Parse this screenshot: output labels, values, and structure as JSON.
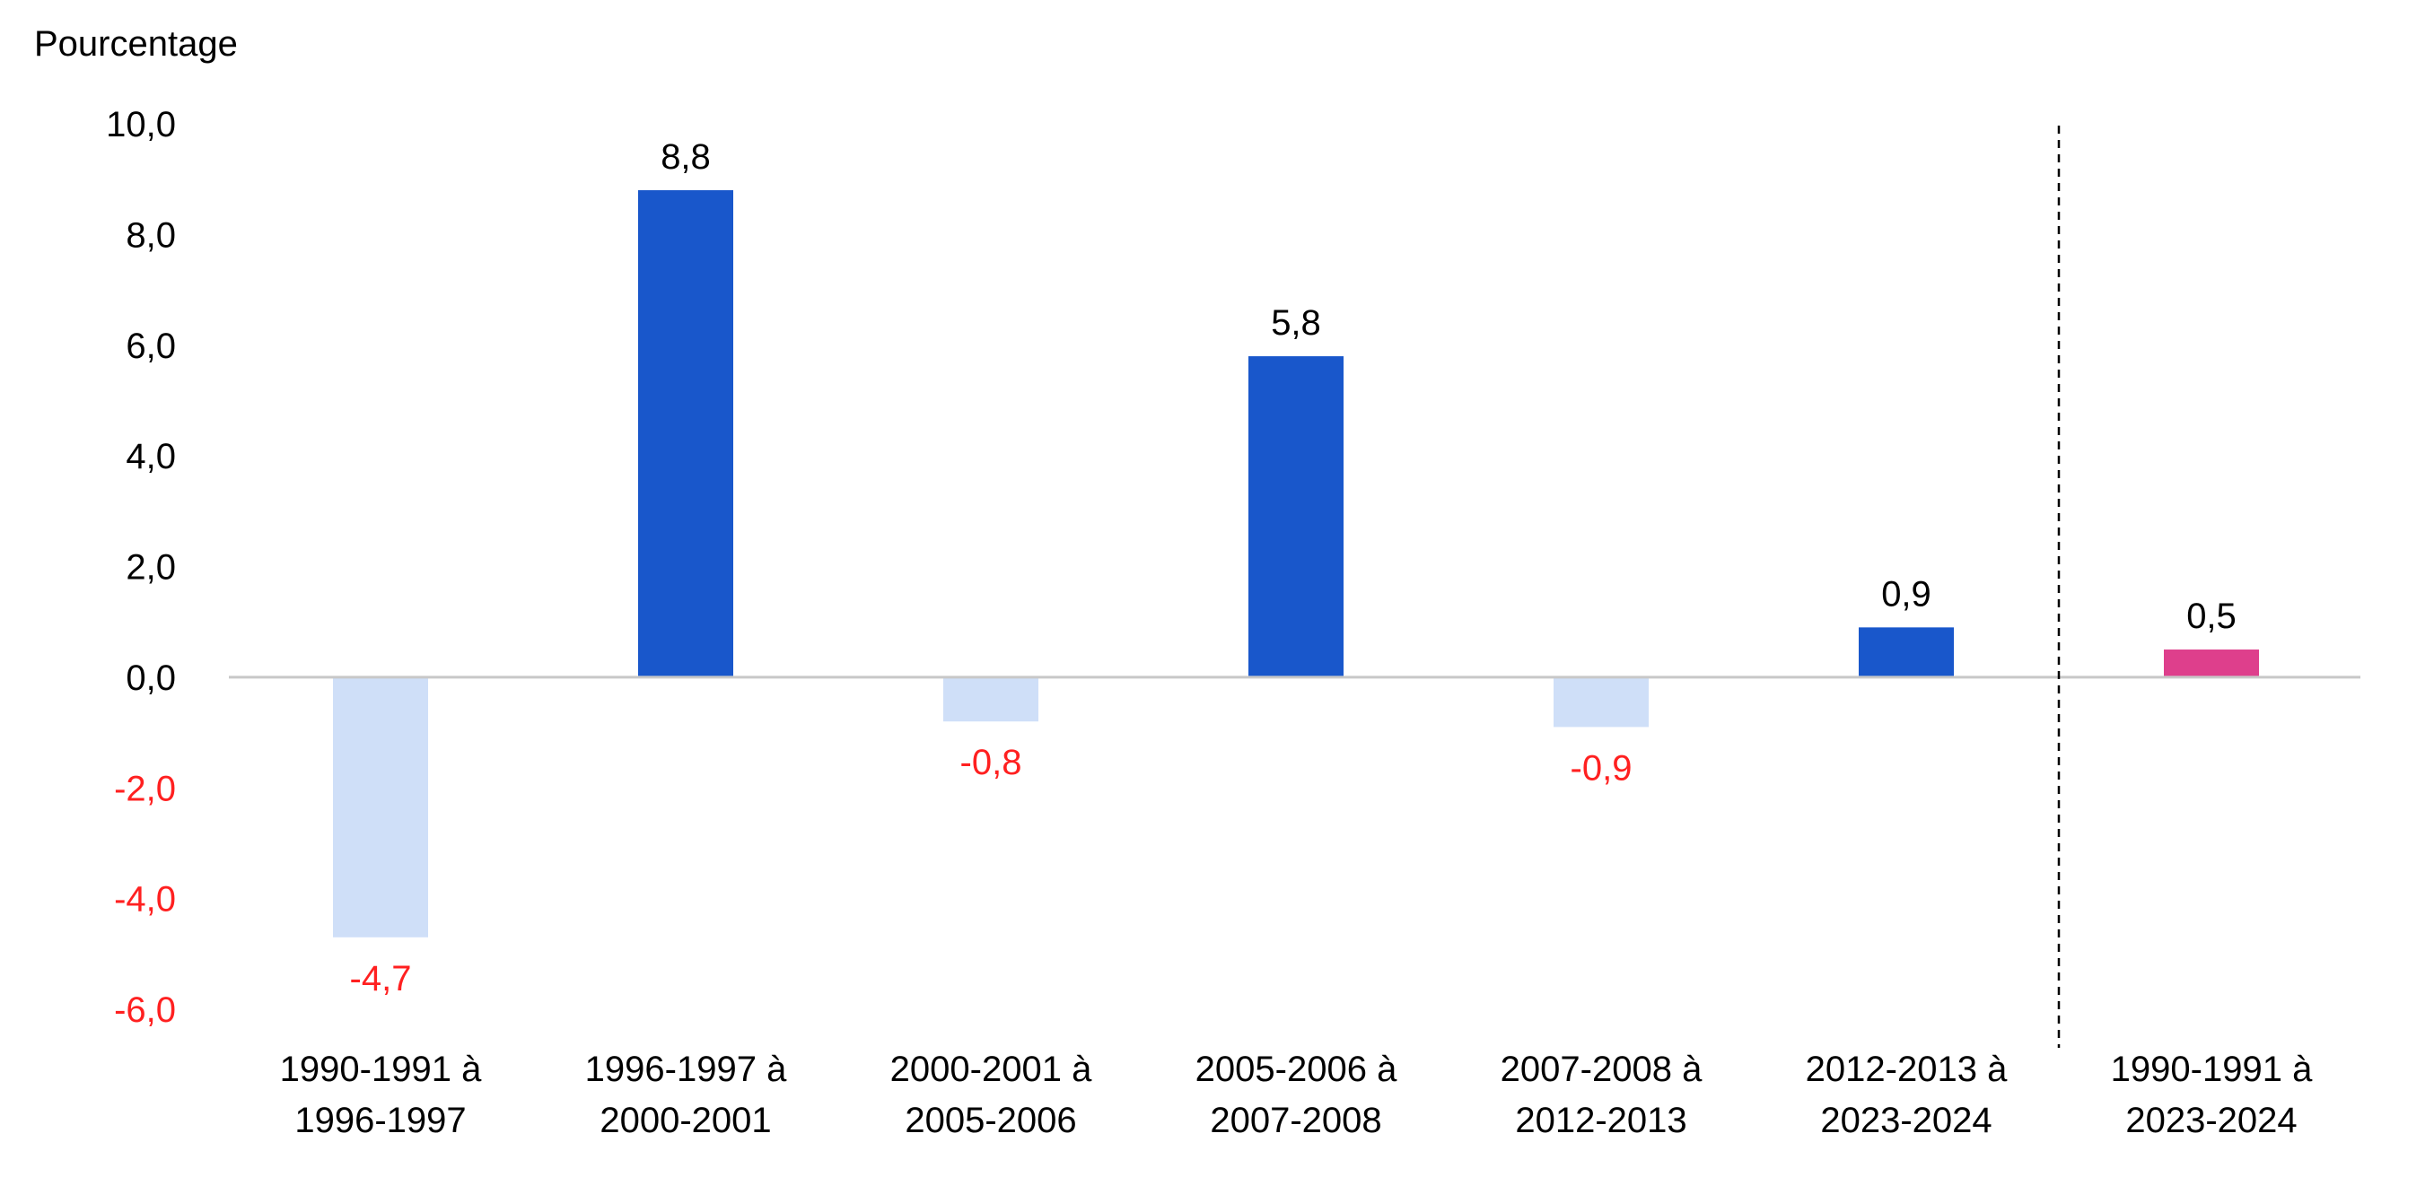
{
  "chart_data": {
    "type": "bar",
    "ylabel": "Pourcentage",
    "ylim": [
      -6,
      10
    ],
    "y_ticks": [
      "10,0",
      "8,0",
      "6,0",
      "4,0",
      "2,0",
      "0,0",
      "-2,0",
      "-4,0",
      "-6,0"
    ],
    "y_tick_values": [
      10,
      8,
      6,
      4,
      2,
      0,
      -2,
      -4,
      -6
    ],
    "categories": [
      [
        "1990-1991 à",
        "1996-1997"
      ],
      [
        "1996-1997 à",
        "2000-2001"
      ],
      [
        "2000-2001 à",
        "2005-2006"
      ],
      [
        "2005-2006 à",
        "2007-2008"
      ],
      [
        "2007-2008 à",
        "2012-2013"
      ],
      [
        "2012-2013 à",
        "2023-2024"
      ],
      [
        "1990-1991 à",
        "2023-2024"
      ]
    ],
    "values": [
      -4.7,
      8.8,
      -0.8,
      5.8,
      -0.9,
      0.9,
      0.5
    ],
    "value_labels": [
      "-4,7",
      "8,8",
      "-0,8",
      "5,8",
      "-0,9",
      "0,9",
      "0,5"
    ],
    "bar_colors": [
      "#cfdff8",
      "#1957cb",
      "#cfdff8",
      "#1957cb",
      "#cfdff8",
      "#1957cb",
      "#de3f8c"
    ],
    "negative_text_color": "#ff2020",
    "positive_text_color": "#000000",
    "separator": "dashed vertical line before last category",
    "grid": false,
    "legend": "none"
  }
}
